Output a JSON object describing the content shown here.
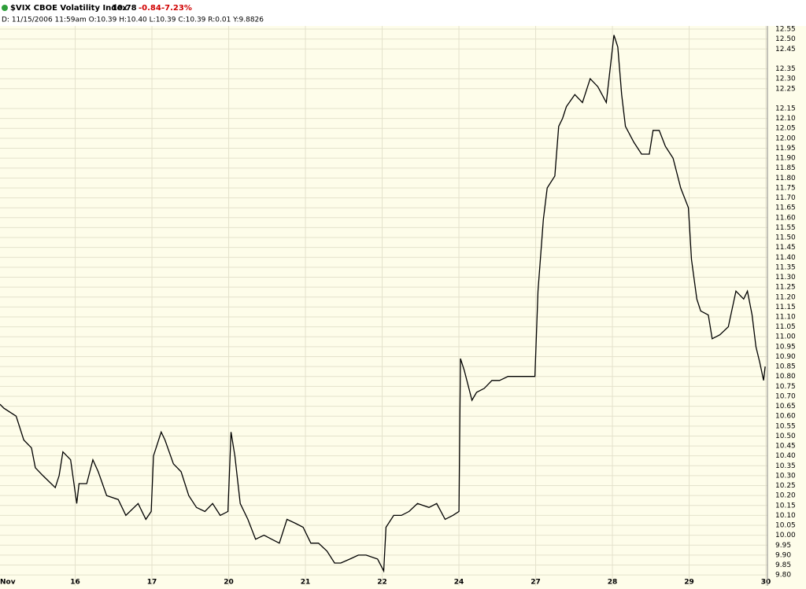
{
  "chart_data": {
    "type": "line",
    "title": "$VIX CBOE Volatility Index",
    "annotations": [
      "10.78",
      "-0.84",
      "-7.23%"
    ],
    "subtitle": "D: 11/15/2006  11:59am O:10.39 H:10.40 L:10.39 C:10.39 R:0.01 Y:9.8826",
    "color": "#000000",
    "grid": true,
    "xlim": [
      0.02,
      10.02
    ],
    "xticks": [
      {
        "value": 0,
        "label": "Nov"
      },
      {
        "value": 1,
        "label": "16"
      },
      {
        "value": 2,
        "label": "17"
      },
      {
        "value": 3,
        "label": "20"
      },
      {
        "value": 4,
        "label": "21"
      },
      {
        "value": 5,
        "label": "22"
      },
      {
        "value": 6,
        "label": "24"
      },
      {
        "value": 7,
        "label": "27"
      },
      {
        "value": 8,
        "label": "28"
      },
      {
        "value": 9,
        "label": "29"
      },
      {
        "value": 10,
        "label": "30"
      }
    ],
    "ylim": [
      9.745,
      12.566
    ],
    "yticks": [
      12.55,
      {
        "value": 12.5,
        "label": "12.50"
      },
      12.45,
      12.35,
      {
        "value": 12.3,
        "label": "12.30"
      },
      12.25,
      12.15,
      {
        "value": 12.1,
        "label": "12.10"
      },
      12.05,
      {
        "value": 12,
        "label": "12.00"
      },
      11.95,
      {
        "value": 11.9,
        "label": "11.90"
      },
      11.85,
      {
        "value": 11.8,
        "label": "11.80"
      },
      11.75,
      {
        "value": 11.7,
        "label": "11.70"
      },
      11.65,
      {
        "value": 11.6,
        "label": "11.60"
      },
      11.55,
      {
        "value": 11.5,
        "label": "11.50"
      },
      11.45,
      {
        "value": 11.4,
        "label": "11.40"
      },
      11.35,
      {
        "value": 11.3,
        "label": "11.30"
      },
      11.25,
      {
        "value": 11.2,
        "label": "11.20"
      },
      11.15,
      {
        "value": 11.1,
        "label": "11.10"
      },
      11.05,
      {
        "value": 11,
        "label": "11.00"
      },
      10.95,
      {
        "value": 10.9,
        "label": "10.90"
      },
      10.85,
      {
        "value": 10.8,
        "label": "10.80"
      },
      10.75,
      {
        "value": 10.7,
        "label": "10.70"
      },
      10.65,
      {
        "value": 10.6,
        "label": "10.60"
      },
      10.55,
      {
        "value": 10.5,
        "label": "10.50"
      },
      10.45,
      {
        "value": 10.4,
        "label": "10.40"
      },
      10.35,
      {
        "value": 10.3,
        "label": "10.30"
      },
      10.25,
      {
        "value": 10.2,
        "label": "10.20"
      },
      10.15,
      {
        "value": 10.1,
        "label": "10.10"
      },
      10.05,
      {
        "value": 10,
        "label": "10.00"
      },
      9.95,
      {
        "value": 9.9,
        "label": "9.90"
      },
      9.85,
      {
        "value": 9.8,
        "label": "9.80"
      }
    ],
    "x": [
      0.02,
      0.07,
      0.23,
      0.33,
      0.43,
      0.48,
      0.58,
      0.74,
      0.79,
      0.84,
      0.94,
      1.02,
      1.05,
      1.15,
      1.23,
      1.3,
      1.41,
      1.56,
      1.66,
      1.82,
      1.92,
      1.99,
      2.02,
      2.12,
      2.17,
      2.28,
      2.38,
      2.48,
      2.58,
      2.69,
      2.79,
      2.89,
      2.99,
      3.03,
      3.08,
      3.15,
      3.25,
      3.35,
      3.46,
      3.56,
      3.66,
      3.76,
      3.87,
      3.97,
      4.07,
      4.17,
      4.28,
      4.38,
      4.46,
      4.58,
      4.69,
      4.79,
      4.94,
      5.02,
      5.05,
      5.15,
      5.25,
      5.35,
      5.46,
      5.61,
      5.71,
      5.82,
      5.92,
      6.0,
      6.02,
      6.07,
      6.17,
      6.23,
      6.33,
      6.43,
      6.53,
      6.64,
      6.99,
      7.03,
      7.1,
      7.15,
      7.25,
      7.3,
      7.35,
      7.4,
      7.51,
      7.61,
      7.71,
      7.81,
      7.92,
      8.02,
      8.07,
      8.12,
      8.17,
      8.28,
      8.38,
      8.48,
      8.53,
      8.61,
      8.69,
      8.79,
      8.89,
      8.99,
      9.03,
      9.1,
      9.15,
      9.25,
      9.3,
      9.4,
      9.51,
      9.61,
      9.71,
      9.76,
      9.82,
      9.87,
      9.92,
      9.97,
      9.99
    ],
    "values": [
      10.66,
      10.64,
      10.6,
      10.48,
      10.44,
      10.34,
      10.3,
      10.24,
      10.3,
      10.42,
      10.38,
      10.16,
      10.26,
      10.26,
      10.38,
      10.32,
      10.2,
      10.18,
      10.1,
      10.16,
      10.08,
      10.12,
      10.4,
      10.52,
      10.48,
      10.36,
      10.32,
      10.2,
      10.14,
      10.12,
      10.16,
      10.1,
      10.12,
      10.52,
      10.4,
      10.16,
      10.08,
      9.98,
      10.0,
      9.98,
      9.96,
      10.08,
      10.06,
      10.04,
      9.96,
      9.96,
      9.92,
      9.86,
      9.86,
      9.88,
      9.9,
      9.9,
      9.88,
      9.82,
      10.04,
      10.1,
      10.1,
      10.12,
      10.16,
      10.14,
      10.16,
      10.08,
      10.1,
      10.12,
      10.89,
      10.83,
      10.68,
      10.72,
      10.74,
      10.78,
      10.78,
      10.8,
      10.8,
      11.23,
      11.59,
      11.75,
      11.81,
      12.06,
      12.1,
      12.16,
      12.22,
      12.18,
      12.3,
      12.26,
      12.18,
      12.52,
      12.46,
      12.22,
      12.06,
      11.98,
      11.92,
      11.92,
      12.04,
      12.04,
      11.96,
      11.9,
      11.75,
      11.65,
      11.39,
      11.19,
      11.13,
      11.11,
      10.99,
      11.01,
      11.05,
      11.23,
      11.19,
      11.23,
      11.11,
      10.95,
      10.87,
      10.78,
      10.85
    ]
  }
}
